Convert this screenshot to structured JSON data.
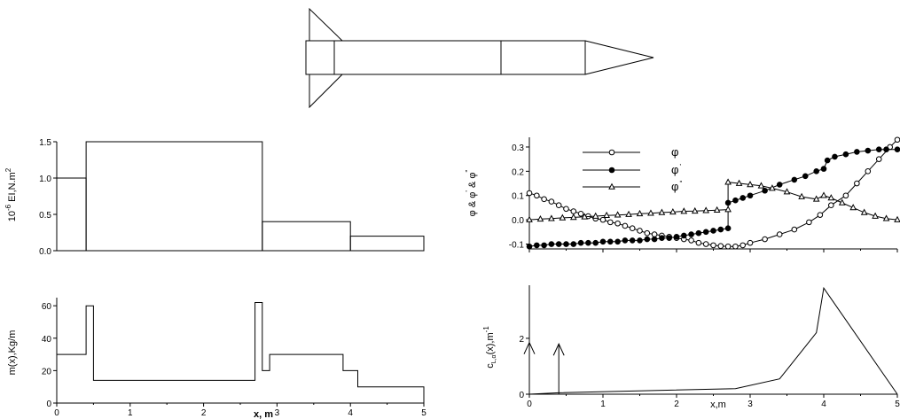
{
  "chart_data": [
    {
      "type": "diagram",
      "name": "rocket-sketch"
    },
    {
      "type": "line",
      "name": "stiffness",
      "xlabel": "",
      "ylabel": "10⁻⁶ EI,N.m²",
      "ylabel_parts": {
        "pre": "10",
        "exp1": "-6",
        "mid": " EI,N.m",
        "exp2": "2"
      },
      "xlim": [
        0,
        5
      ],
      "ylim": [
        0,
        1.5
      ],
      "yticks": [
        0.0,
        0.5,
        1.0,
        1.5
      ],
      "ytick_labels": [
        "0.0",
        "0.5",
        "1.0",
        "1.5"
      ],
      "steps": [
        {
          "x0": 0,
          "x1": 0.4,
          "y": 1.0
        },
        {
          "x0": 0.4,
          "x1": 2.8,
          "y": 1.5
        },
        {
          "x0": 2.8,
          "x1": 4.0,
          "y": 0.4
        },
        {
          "x0": 4.0,
          "x1": 5.0,
          "y": 0.2
        }
      ]
    },
    {
      "type": "line",
      "name": "mass",
      "xlabel": "x, m",
      "ylabel": "m(x),Kg/m",
      "xlim": [
        0,
        5
      ],
      "ylim": [
        0,
        65
      ],
      "xticks": [
        0,
        1,
        2,
        3,
        4,
        5
      ],
      "xtick_labels": [
        "0",
        "1",
        "2",
        "3",
        "4",
        "5"
      ],
      "yticks": [
        0,
        20,
        40,
        60
      ],
      "ytick_labels": [
        "0",
        "20",
        "40",
        "60"
      ],
      "points": [
        [
          0,
          30
        ],
        [
          0.4,
          30
        ],
        [
          0.4,
          60
        ],
        [
          0.5,
          60
        ],
        [
          0.5,
          14
        ],
        [
          2.7,
          14
        ],
        [
          2.7,
          62
        ],
        [
          2.8,
          62
        ],
        [
          2.8,
          20
        ],
        [
          2.9,
          20
        ],
        [
          2.9,
          30
        ],
        [
          3.9,
          30
        ],
        [
          3.9,
          20
        ],
        [
          4.1,
          20
        ],
        [
          4.1,
          10
        ],
        [
          5.0,
          10
        ],
        [
          5.0,
          0
        ]
      ]
    },
    {
      "type": "line",
      "name": "mode-shape",
      "xlabel": "",
      "ylabel": "φ & φ' & φ\"",
      "ylabel_parts": {
        "a": "φ & φ",
        "b": "'",
        "c": " & φ",
        "d": "\""
      },
      "xlim": [
        0,
        5
      ],
      "ylim": [
        -0.12,
        0.34
      ],
      "yticks": [
        -0.1,
        0.0,
        0.1,
        0.2,
        0.3
      ],
      "ytick_labels": [
        "-0.1",
        "0.0",
        "0.1",
        "0.2",
        "0.3"
      ],
      "legend_position": "top-left",
      "series": [
        {
          "name": "φ",
          "label_sup": "",
          "marker": "open-circle",
          "values": [
            [
              0.0,
              0.11
            ],
            [
              0.1,
              0.1
            ],
            [
              0.2,
              0.085
            ],
            [
              0.3,
              0.075
            ],
            [
              0.4,
              0.06
            ],
            [
              0.5,
              0.045
            ],
            [
              0.6,
              0.035
            ],
            [
              0.7,
              0.025
            ],
            [
              0.8,
              0.015
            ],
            [
              0.9,
              0.005
            ],
            [
              1.0,
              0.0
            ],
            [
              1.1,
              -0.01
            ],
            [
              1.2,
              -0.015
            ],
            [
              1.3,
              -0.025
            ],
            [
              1.4,
              -0.035
            ],
            [
              1.5,
              -0.045
            ],
            [
              1.6,
              -0.055
            ],
            [
              1.7,
              -0.06
            ],
            [
              1.8,
              -0.065
            ],
            [
              1.9,
              -0.07
            ],
            [
              2.0,
              -0.075
            ],
            [
              2.1,
              -0.08
            ],
            [
              2.2,
              -0.085
            ],
            [
              2.3,
              -0.095
            ],
            [
              2.4,
              -0.1
            ],
            [
              2.5,
              -0.105
            ],
            [
              2.6,
              -0.108
            ],
            [
              2.7,
              -0.11
            ],
            [
              2.8,
              -0.11
            ],
            [
              2.9,
              -0.105
            ],
            [
              3.0,
              -0.095
            ],
            [
              3.2,
              -0.08
            ],
            [
              3.4,
              -0.06
            ],
            [
              3.6,
              -0.04
            ],
            [
              3.8,
              -0.01
            ],
            [
              3.95,
              0.02
            ],
            [
              4.1,
              0.06
            ],
            [
              4.3,
              0.1
            ],
            [
              4.45,
              0.15
            ],
            [
              4.6,
              0.2
            ],
            [
              4.75,
              0.25
            ],
            [
              4.9,
              0.3
            ],
            [
              5.0,
              0.33
            ]
          ]
        },
        {
          "name": "φ",
          "label_sup": "'",
          "marker": "filled-circle",
          "values": [
            [
              0.0,
              -0.11
            ],
            [
              0.1,
              -0.105
            ],
            [
              0.2,
              -0.105
            ],
            [
              0.3,
              -0.1
            ],
            [
              0.4,
              -0.1
            ],
            [
              0.5,
              -0.1
            ],
            [
              0.6,
              -0.1
            ],
            [
              0.7,
              -0.095
            ],
            [
              0.8,
              -0.095
            ],
            [
              0.9,
              -0.095
            ],
            [
              1.0,
              -0.09
            ],
            [
              1.1,
              -0.09
            ],
            [
              1.2,
              -0.09
            ],
            [
              1.3,
              -0.085
            ],
            [
              1.4,
              -0.085
            ],
            [
              1.5,
              -0.085
            ],
            [
              1.6,
              -0.08
            ],
            [
              1.7,
              -0.08
            ],
            [
              1.8,
              -0.075
            ],
            [
              1.9,
              -0.075
            ],
            [
              2.0,
              -0.07
            ],
            [
              2.1,
              -0.065
            ],
            [
              2.2,
              -0.06
            ],
            [
              2.3,
              -0.055
            ],
            [
              2.4,
              -0.05
            ],
            [
              2.5,
              -0.045
            ],
            [
              2.6,
              -0.04
            ],
            [
              2.7,
              -0.035
            ],
            [
              2.7,
              0.07
            ],
            [
              2.8,
              0.08
            ],
            [
              2.9,
              0.09
            ],
            [
              3.0,
              0.1
            ],
            [
              3.2,
              0.12
            ],
            [
              3.4,
              0.145
            ],
            [
              3.6,
              0.165
            ],
            [
              3.75,
              0.18
            ],
            [
              3.9,
              0.2
            ],
            [
              4.0,
              0.21
            ],
            [
              4.05,
              0.245
            ],
            [
              4.15,
              0.26
            ],
            [
              4.3,
              0.27
            ],
            [
              4.45,
              0.28
            ],
            [
              4.6,
              0.285
            ],
            [
              4.75,
              0.29
            ],
            [
              4.85,
              0.29
            ],
            [
              5.0,
              0.29
            ]
          ]
        },
        {
          "name": "φ",
          "label_sup": "\"",
          "marker": "open-triangle",
          "values": [
            [
              0.0,
              0.0
            ],
            [
              0.15,
              0.003
            ],
            [
              0.3,
              0.005
            ],
            [
              0.45,
              0.008
            ],
            [
              0.6,
              0.01
            ],
            [
              0.75,
              0.012
            ],
            [
              0.9,
              0.015
            ],
            [
              1.05,
              0.018
            ],
            [
              1.2,
              0.02
            ],
            [
              1.35,
              0.022
            ],
            [
              1.5,
              0.025
            ],
            [
              1.65,
              0.027
            ],
            [
              1.8,
              0.03
            ],
            [
              1.95,
              0.032
            ],
            [
              2.1,
              0.035
            ],
            [
              2.25,
              0.036
            ],
            [
              2.4,
              0.038
            ],
            [
              2.55,
              0.04
            ],
            [
              2.7,
              0.042
            ],
            [
              2.7,
              0.155
            ],
            [
              2.85,
              0.15
            ],
            [
              3.0,
              0.145
            ],
            [
              3.15,
              0.14
            ],
            [
              3.3,
              0.13
            ],
            [
              3.5,
              0.115
            ],
            [
              3.7,
              0.095
            ],
            [
              3.9,
              0.085
            ],
            [
              4.0,
              0.1
            ],
            [
              4.1,
              0.09
            ],
            [
              4.25,
              0.07
            ],
            [
              4.4,
              0.05
            ],
            [
              4.55,
              0.03
            ],
            [
              4.7,
              0.015
            ],
            [
              4.85,
              0.005
            ],
            [
              5.0,
              0.0
            ]
          ]
        }
      ]
    },
    {
      "type": "line",
      "name": "lift-curve",
      "xlabel": "x,m",
      "ylabel": "cₗα(x),m⁻¹",
      "ylabel_parts": {
        "c": "c",
        "sub": "L,α",
        "rest": "(x),m",
        "sup": "-1"
      },
      "xlim": [
        0,
        5
      ],
      "ylim": [
        0,
        3.9
      ],
      "xticks": [
        0,
        1,
        2,
        3,
        4,
        5
      ],
      "xtick_labels": [
        "0",
        "1",
        "2",
        "3",
        "4",
        "5"
      ],
      "yticks": [
        0,
        2
      ],
      "ytick_labels": [
        "0",
        "2"
      ],
      "points": [
        [
          0,
          0
        ],
        [
          0.4,
          0.05
        ],
        [
          2.8,
          0.2
        ],
        [
          3.4,
          0.55
        ],
        [
          3.9,
          2.2
        ],
        [
          4.0,
          3.8
        ],
        [
          5.0,
          0.0
        ]
      ],
      "arrows": [
        {
          "x": 0,
          "top": 1.85
        },
        {
          "x": 0.4,
          "top": 1.8
        }
      ]
    }
  ]
}
